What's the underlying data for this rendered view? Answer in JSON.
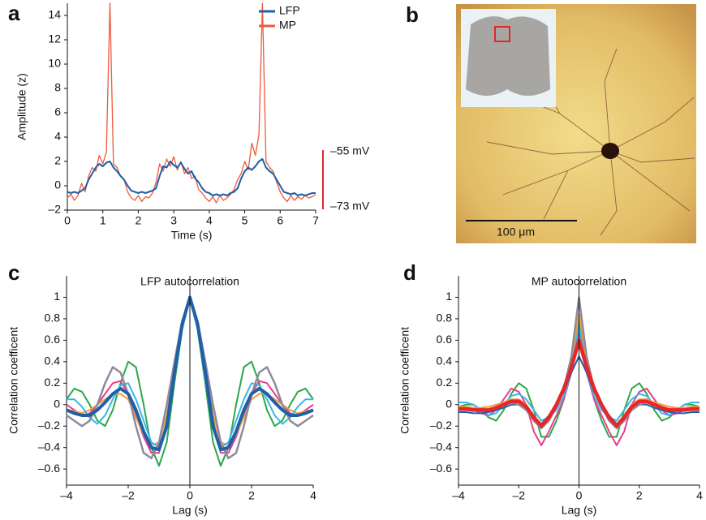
{
  "chart_data": [
    {
      "type": "line",
      "panel_label": "a",
      "xlabel": "Time (s)",
      "ylabel": "Amplitude (z)",
      "xlim": [
        0,
        7
      ],
      "ylim": [
        -2,
        15
      ],
      "xticks": [
        0,
        1,
        2,
        3,
        4,
        5,
        6,
        7
      ],
      "yticks": [
        {
          "value": -2,
          "label": "–2"
        },
        0,
        2,
        4,
        6,
        8,
        10,
        12,
        14
      ],
      "legend": "upper right",
      "scale_bar": {
        "labels": [
          "–55 mV",
          "–73 mV"
        ],
        "color": "#e0262a"
      },
      "x": [
        0,
        0.1,
        0.2,
        0.3,
        0.4,
        0.5,
        0.6,
        0.7,
        0.8,
        0.9,
        1,
        1.1,
        1.2,
        1.3,
        1.4,
        1.5,
        1.6,
        1.7,
        1.8,
        1.9,
        2,
        2.1,
        2.2,
        2.3,
        2.4,
        2.5,
        2.6,
        2.7,
        2.8,
        2.9,
        3,
        3.1,
        3.2,
        3.3,
        3.4,
        3.5,
        3.6,
        3.7,
        3.8,
        3.9,
        4,
        4.1,
        4.2,
        4.3,
        4.4,
        4.5,
        4.6,
        4.7,
        4.8,
        4.9,
        5,
        5.1,
        5.2,
        5.3,
        5.4,
        5.5,
        5.6,
        5.7,
        5.8,
        5.9,
        6,
        6.1,
        6.2,
        6.3,
        6.4,
        6.5,
        6.6,
        6.7,
        6.8,
        6.9,
        7
      ],
      "series": [
        {
          "name": "MP",
          "color": "#ee5a3c",
          "width": 1.3,
          "values": [
            -1.0,
            -0.7,
            -1.2,
            -0.8,
            0.2,
            -0.5,
            0.8,
            1.5,
            1.2,
            2.5,
            1.8,
            2.8,
            15,
            1.8,
            1.5,
            0.8,
            0.5,
            -0.5,
            -1.0,
            -1.2,
            -0.8,
            -1.3,
            -0.9,
            -1.0,
            -0.6,
            0.3,
            1.8,
            1.2,
            2.2,
            1.6,
            2.4,
            1.3,
            2.0,
            1.0,
            1.5,
            0.6,
            0.8,
            -0.3,
            -0.6,
            -1.0,
            -1.3,
            -0.9,
            -1.4,
            -0.8,
            -1.2,
            -1.0,
            -0.7,
            -0.3,
            0.5,
            1.0,
            2.0,
            1.3,
            3.5,
            2.5,
            4.2,
            15,
            2.0,
            1.5,
            1.2,
            0.3,
            -0.5,
            -1.0,
            -1.3,
            -0.8,
            -1.2,
            -0.9,
            -1.1,
            -0.8,
            -1.0,
            -0.9,
            -0.7
          ]
        },
        {
          "name": "LFP",
          "color": "#1f5fa8",
          "width": 2,
          "values": [
            -0.5,
            -0.6,
            -0.5,
            -0.6,
            -0.4,
            -0.2,
            0.5,
            1.0,
            1.5,
            1.8,
            1.6,
            1.9,
            2.0,
            1.5,
            1.2,
            0.8,
            0.5,
            0,
            -0.4,
            -0.5,
            -0.6,
            -0.5,
            -0.6,
            -0.5,
            -0.4,
            -0.2,
            0.8,
            1.6,
            1.5,
            2.0,
            1.7,
            1.5,
            1.9,
            1.4,
            1.0,
            1.2,
            0.6,
            0.3,
            -0.2,
            -0.5,
            -0.6,
            -0.8,
            -0.7,
            -0.8,
            -0.7,
            -0.8,
            -0.6,
            -0.5,
            -0.2,
            0.6,
            1.2,
            1.5,
            1.3,
            1.6,
            2.0,
            2.2,
            1.5,
            1.2,
            1.0,
            0.5,
            0,
            -0.5,
            -0.6,
            -0.7,
            -0.6,
            -0.8,
            -0.7,
            -0.8,
            -0.7,
            -0.6,
            -0.6
          ]
        }
      ]
    },
    {
      "type": "line",
      "panel_label": "c",
      "title": "LFP autocorrelation",
      "xlabel": "Lag (s)",
      "ylabel": "Correlation coefficent",
      "xlim": [
        -4,
        4
      ],
      "ylim": [
        -0.75,
        1.2
      ],
      "vline": 0,
      "xticks": [
        {
          "value": -4,
          "label": "–4"
        },
        {
          "value": -2,
          "label": "–2"
        },
        0,
        2,
        4
      ],
      "yticks": [
        {
          "value": -0.6,
          "label": "–0.6"
        },
        {
          "value": -0.4,
          "label": "–0.4"
        },
        {
          "value": -0.2,
          "label": "–0.2"
        },
        0,
        0.2,
        0.4,
        0.6,
        0.8,
        1
      ],
      "x": [
        -4,
        -3.75,
        -3.5,
        -3.25,
        -3,
        -2.75,
        -2.5,
        -2.25,
        -2,
        -1.75,
        -1.5,
        -1.25,
        -1,
        -0.75,
        -0.5,
        -0.25,
        0,
        0.25,
        0.5,
        0.75,
        1,
        1.25,
        1.5,
        1.75,
        2,
        2.25,
        2.5,
        2.75,
        3,
        3.25,
        3.5,
        3.75,
        4
      ],
      "series": [
        {
          "color": "#2aa84a",
          "width": 2,
          "values": [
            0.05,
            0.15,
            0.12,
            0,
            -0.15,
            -0.2,
            -0.05,
            0.2,
            0.4,
            0.35,
            0,
            -0.4,
            -0.57,
            -0.35,
            0.2,
            0.7,
            1,
            0.7,
            0.2,
            -0.35,
            -0.57,
            -0.4,
            0,
            0.35,
            0.4,
            0.2,
            -0.05,
            -0.2,
            -0.15,
            0,
            0.12,
            0.15,
            0.05
          ]
        },
        {
          "color": "#e83e8c",
          "width": 2,
          "values": [
            0,
            -0.05,
            -0.1,
            -0.08,
            0,
            0.1,
            0.2,
            0.22,
            0.1,
            -0.1,
            -0.3,
            -0.45,
            -0.45,
            -0.15,
            0.3,
            0.72,
            1,
            0.72,
            0.3,
            -0.15,
            -0.45,
            -0.45,
            -0.3,
            -0.1,
            0.1,
            0.22,
            0.2,
            0.1,
            0,
            -0.08,
            -0.1,
            -0.05,
            0
          ]
        },
        {
          "color": "#f39c3c",
          "width": 2,
          "values": [
            -0.05,
            -0.06,
            -0.08,
            -0.05,
            0,
            0.05,
            0.1,
            0.1,
            0.05,
            -0.12,
            -0.28,
            -0.38,
            -0.35,
            -0.1,
            0.35,
            0.75,
            1,
            0.75,
            0.35,
            -0.1,
            -0.35,
            -0.38,
            -0.28,
            -0.12,
            0.05,
            0.1,
            0.1,
            0.05,
            0,
            -0.05,
            -0.08,
            -0.06,
            -0.05
          ]
        },
        {
          "color": "#38b6e8",
          "width": 2,
          "values": [
            0.05,
            0.05,
            -0.02,
            -0.12,
            -0.18,
            -0.1,
            0.05,
            0.18,
            0.2,
            0.05,
            -0.15,
            -0.35,
            -0.4,
            -0.2,
            0.25,
            0.7,
            1,
            0.7,
            0.25,
            -0.2,
            -0.4,
            -0.35,
            -0.15,
            0.05,
            0.2,
            0.18,
            0.05,
            -0.1,
            -0.18,
            -0.12,
            -0.02,
            0.05,
            0.05
          ]
        },
        {
          "color": "#8e8a9c",
          "width": 2.5,
          "values": [
            -0.1,
            -0.15,
            -0.2,
            -0.15,
            0,
            0.2,
            0.35,
            0.3,
            0.1,
            -0.2,
            -0.45,
            -0.5,
            -0.35,
            0,
            0.4,
            0.78,
            1,
            0.78,
            0.4,
            0,
            -0.35,
            -0.5,
            -0.45,
            -0.2,
            0.1,
            0.3,
            0.35,
            0.2,
            0,
            -0.15,
            -0.2,
            -0.15,
            -0.1
          ]
        },
        {
          "color": "#1f5fa8",
          "width": 4,
          "values": [
            -0.05,
            -0.08,
            -0.1,
            -0.1,
            -0.05,
            0.02,
            0.1,
            0.15,
            0.1,
            -0.05,
            -0.25,
            -0.4,
            -0.42,
            -0.2,
            0.3,
            0.75,
            1,
            0.75,
            0.3,
            -0.2,
            -0.42,
            -0.4,
            -0.25,
            -0.05,
            0.1,
            0.15,
            0.1,
            0.02,
            -0.05,
            -0.1,
            -0.1,
            -0.08,
            -0.05
          ]
        }
      ]
    },
    {
      "type": "line",
      "panel_label": "d",
      "title": "MP autocorrelation",
      "xlabel": "Lag (s)",
      "ylabel": "Correlation coefficent",
      "xlim": [
        -4,
        4
      ],
      "ylim": [
        -0.75,
        1.2
      ],
      "vline": 0,
      "xticks": [
        {
          "value": -4,
          "label": "–4"
        },
        {
          "value": -2,
          "label": "–2"
        },
        0,
        2,
        4
      ],
      "yticks": [
        {
          "value": -0.6,
          "label": "–0.6"
        },
        {
          "value": -0.4,
          "label": "–0.4"
        },
        {
          "value": -0.2,
          "label": "–0.2"
        },
        0,
        0.2,
        0.4,
        0.6,
        0.8,
        1
      ],
      "x": [
        -4,
        -3.75,
        -3.5,
        -3.25,
        -3,
        -2.75,
        -2.5,
        -2.25,
        -2,
        -1.75,
        -1.5,
        -1.25,
        -1,
        -0.75,
        -0.5,
        -0.25,
        0,
        0.25,
        0.5,
        0.75,
        1,
        1.25,
        1.5,
        1.75,
        2,
        2.25,
        2.5,
        2.75,
        3,
        3.25,
        3.5,
        3.75,
        4
      ],
      "series": [
        {
          "color": "#2aa84a",
          "width": 2,
          "values": [
            -0.02,
            0,
            0,
            -0.05,
            -0.12,
            -0.15,
            -0.05,
            0.1,
            0.2,
            0.15,
            -0.05,
            -0.3,
            -0.3,
            -0.15,
            0.05,
            0.35,
            0.8,
            0.35,
            0.05,
            -0.15,
            -0.3,
            -0.3,
            -0.05,
            0.15,
            0.2,
            0.1,
            -0.05,
            -0.15,
            -0.12,
            -0.05,
            0,
            0,
            -0.02
          ]
        },
        {
          "color": "#e83e8c",
          "width": 2,
          "values": [
            -0.05,
            -0.05,
            -0.05,
            -0.08,
            -0.1,
            -0.05,
            0.05,
            0.15,
            0.12,
            0,
            -0.25,
            -0.38,
            -0.25,
            -0.1,
            0.05,
            0.3,
            0.7,
            0.3,
            0.05,
            -0.1,
            -0.25,
            -0.38,
            -0.25,
            0,
            0.12,
            0.15,
            0.05,
            -0.05,
            -0.1,
            -0.08,
            -0.05,
            -0.05,
            -0.05
          ]
        },
        {
          "color": "#38b6e8",
          "width": 2,
          "values": [
            0.02,
            0.02,
            0,
            -0.05,
            -0.1,
            -0.08,
            0,
            0.08,
            0.1,
            0.05,
            -0.05,
            -0.15,
            -0.12,
            -0.05,
            0.08,
            0.3,
            0.75,
            0.3,
            0.08,
            -0.05,
            -0.12,
            -0.15,
            -0.05,
            0.05,
            0.1,
            0.08,
            0,
            -0.08,
            -0.1,
            -0.05,
            0,
            0.02,
            0.02
          ]
        },
        {
          "color": "#f39c3c",
          "width": 2,
          "values": [
            -0.02,
            -0.02,
            -0.03,
            -0.03,
            -0.02,
            0,
            0.02,
            0.05,
            0.05,
            0,
            -0.1,
            -0.18,
            -0.12,
            -0.02,
            0.12,
            0.4,
            0.85,
            0.4,
            0.12,
            -0.02,
            -0.12,
            -0.18,
            -0.1,
            0,
            0.05,
            0.05,
            0.02,
            0,
            -0.02,
            -0.03,
            -0.03,
            -0.02,
            -0.02
          ]
        },
        {
          "color": "#1f5fa8",
          "width": 2,
          "values": [
            -0.07,
            -0.07,
            -0.08,
            -0.08,
            -0.07,
            -0.05,
            -0.03,
            0,
            0,
            -0.05,
            -0.12,
            -0.18,
            -0.1,
            0,
            0.12,
            0.3,
            0.45,
            0.3,
            0.12,
            0,
            -0.1,
            -0.18,
            -0.12,
            -0.05,
            0,
            0,
            -0.03,
            -0.05,
            -0.07,
            -0.08,
            -0.08,
            -0.07,
            -0.07
          ]
        },
        {
          "color": "#8e8a9c",
          "width": 2.5,
          "values": [
            -0.05,
            -0.05,
            -0.05,
            -0.06,
            -0.05,
            -0.02,
            0,
            0.02,
            0,
            -0.05,
            -0.15,
            -0.22,
            -0.15,
            -0.02,
            0.15,
            0.45,
            1,
            0.45,
            0.15,
            -0.02,
            -0.15,
            -0.22,
            -0.15,
            -0.05,
            0,
            0.02,
            0,
            -0.02,
            -0.05,
            -0.06,
            -0.05,
            -0.05,
            -0.05
          ]
        },
        {
          "color": "#e8262a",
          "width": 4.5,
          "values": [
            -0.04,
            -0.04,
            -0.05,
            -0.05,
            -0.05,
            -0.03,
            0,
            0.03,
            0.03,
            -0.02,
            -0.12,
            -0.2,
            -0.12,
            0,
            0.15,
            0.35,
            0.6,
            0.35,
            0.15,
            0,
            -0.12,
            -0.2,
            -0.12,
            -0.02,
            0.03,
            0.03,
            0,
            -0.03,
            -0.05,
            -0.05,
            -0.05,
            -0.04,
            -0.04
          ]
        }
      ]
    }
  ],
  "image_panel": {
    "panel_label": "b",
    "scale_bar": "100 μm"
  }
}
